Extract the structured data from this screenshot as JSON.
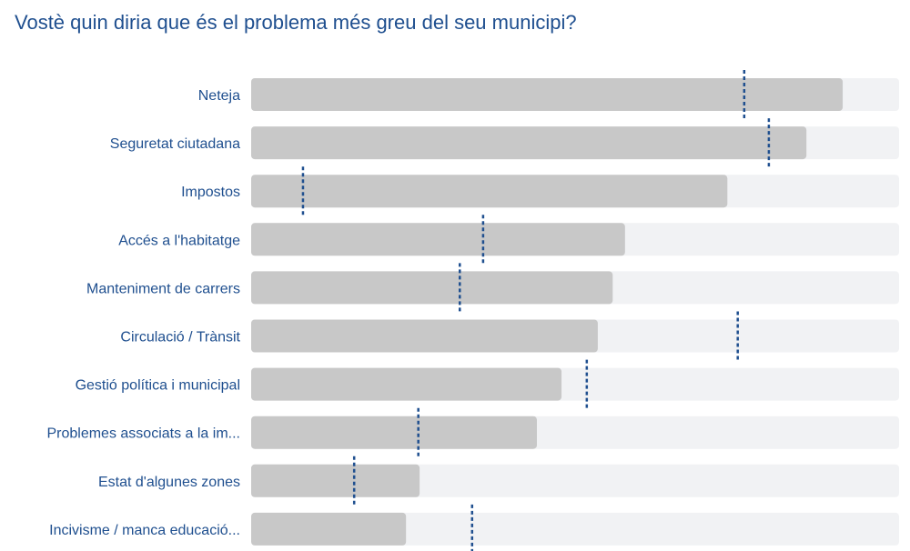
{
  "chart_data": {
    "type": "bar",
    "orientation": "horizontal",
    "title": "Vostè quin diria que és el problema més greu del seu municipi?",
    "categories": [
      "Neteja",
      "Seguretat ciutadana",
      "Impostos",
      "Accés a l'habitatge",
      "Manteniment de carrers",
      "Circulació / Trànsit",
      "Gestió política i municipal",
      "Problemes associats a la im...",
      "Estat d'algunes zones",
      "Incivisme / manca educació..."
    ],
    "values": [
      91.3,
      85.7,
      73.5,
      57.7,
      55.8,
      53.5,
      47.9,
      44.1,
      26.0,
      23.9
    ],
    "reference_markers": [
      76.1,
      79.9,
      8.0,
      35.8,
      32.2,
      75.1,
      51.8,
      25.8,
      15.9,
      34.1
    ],
    "xlim": [
      0,
      100
    ],
    "grid": false,
    "legend": "none",
    "colors": {
      "bar": "#c8c8c8",
      "track": "#f1f2f4",
      "marker": "#1f4f8f",
      "text": "#1f4f8f"
    }
  }
}
